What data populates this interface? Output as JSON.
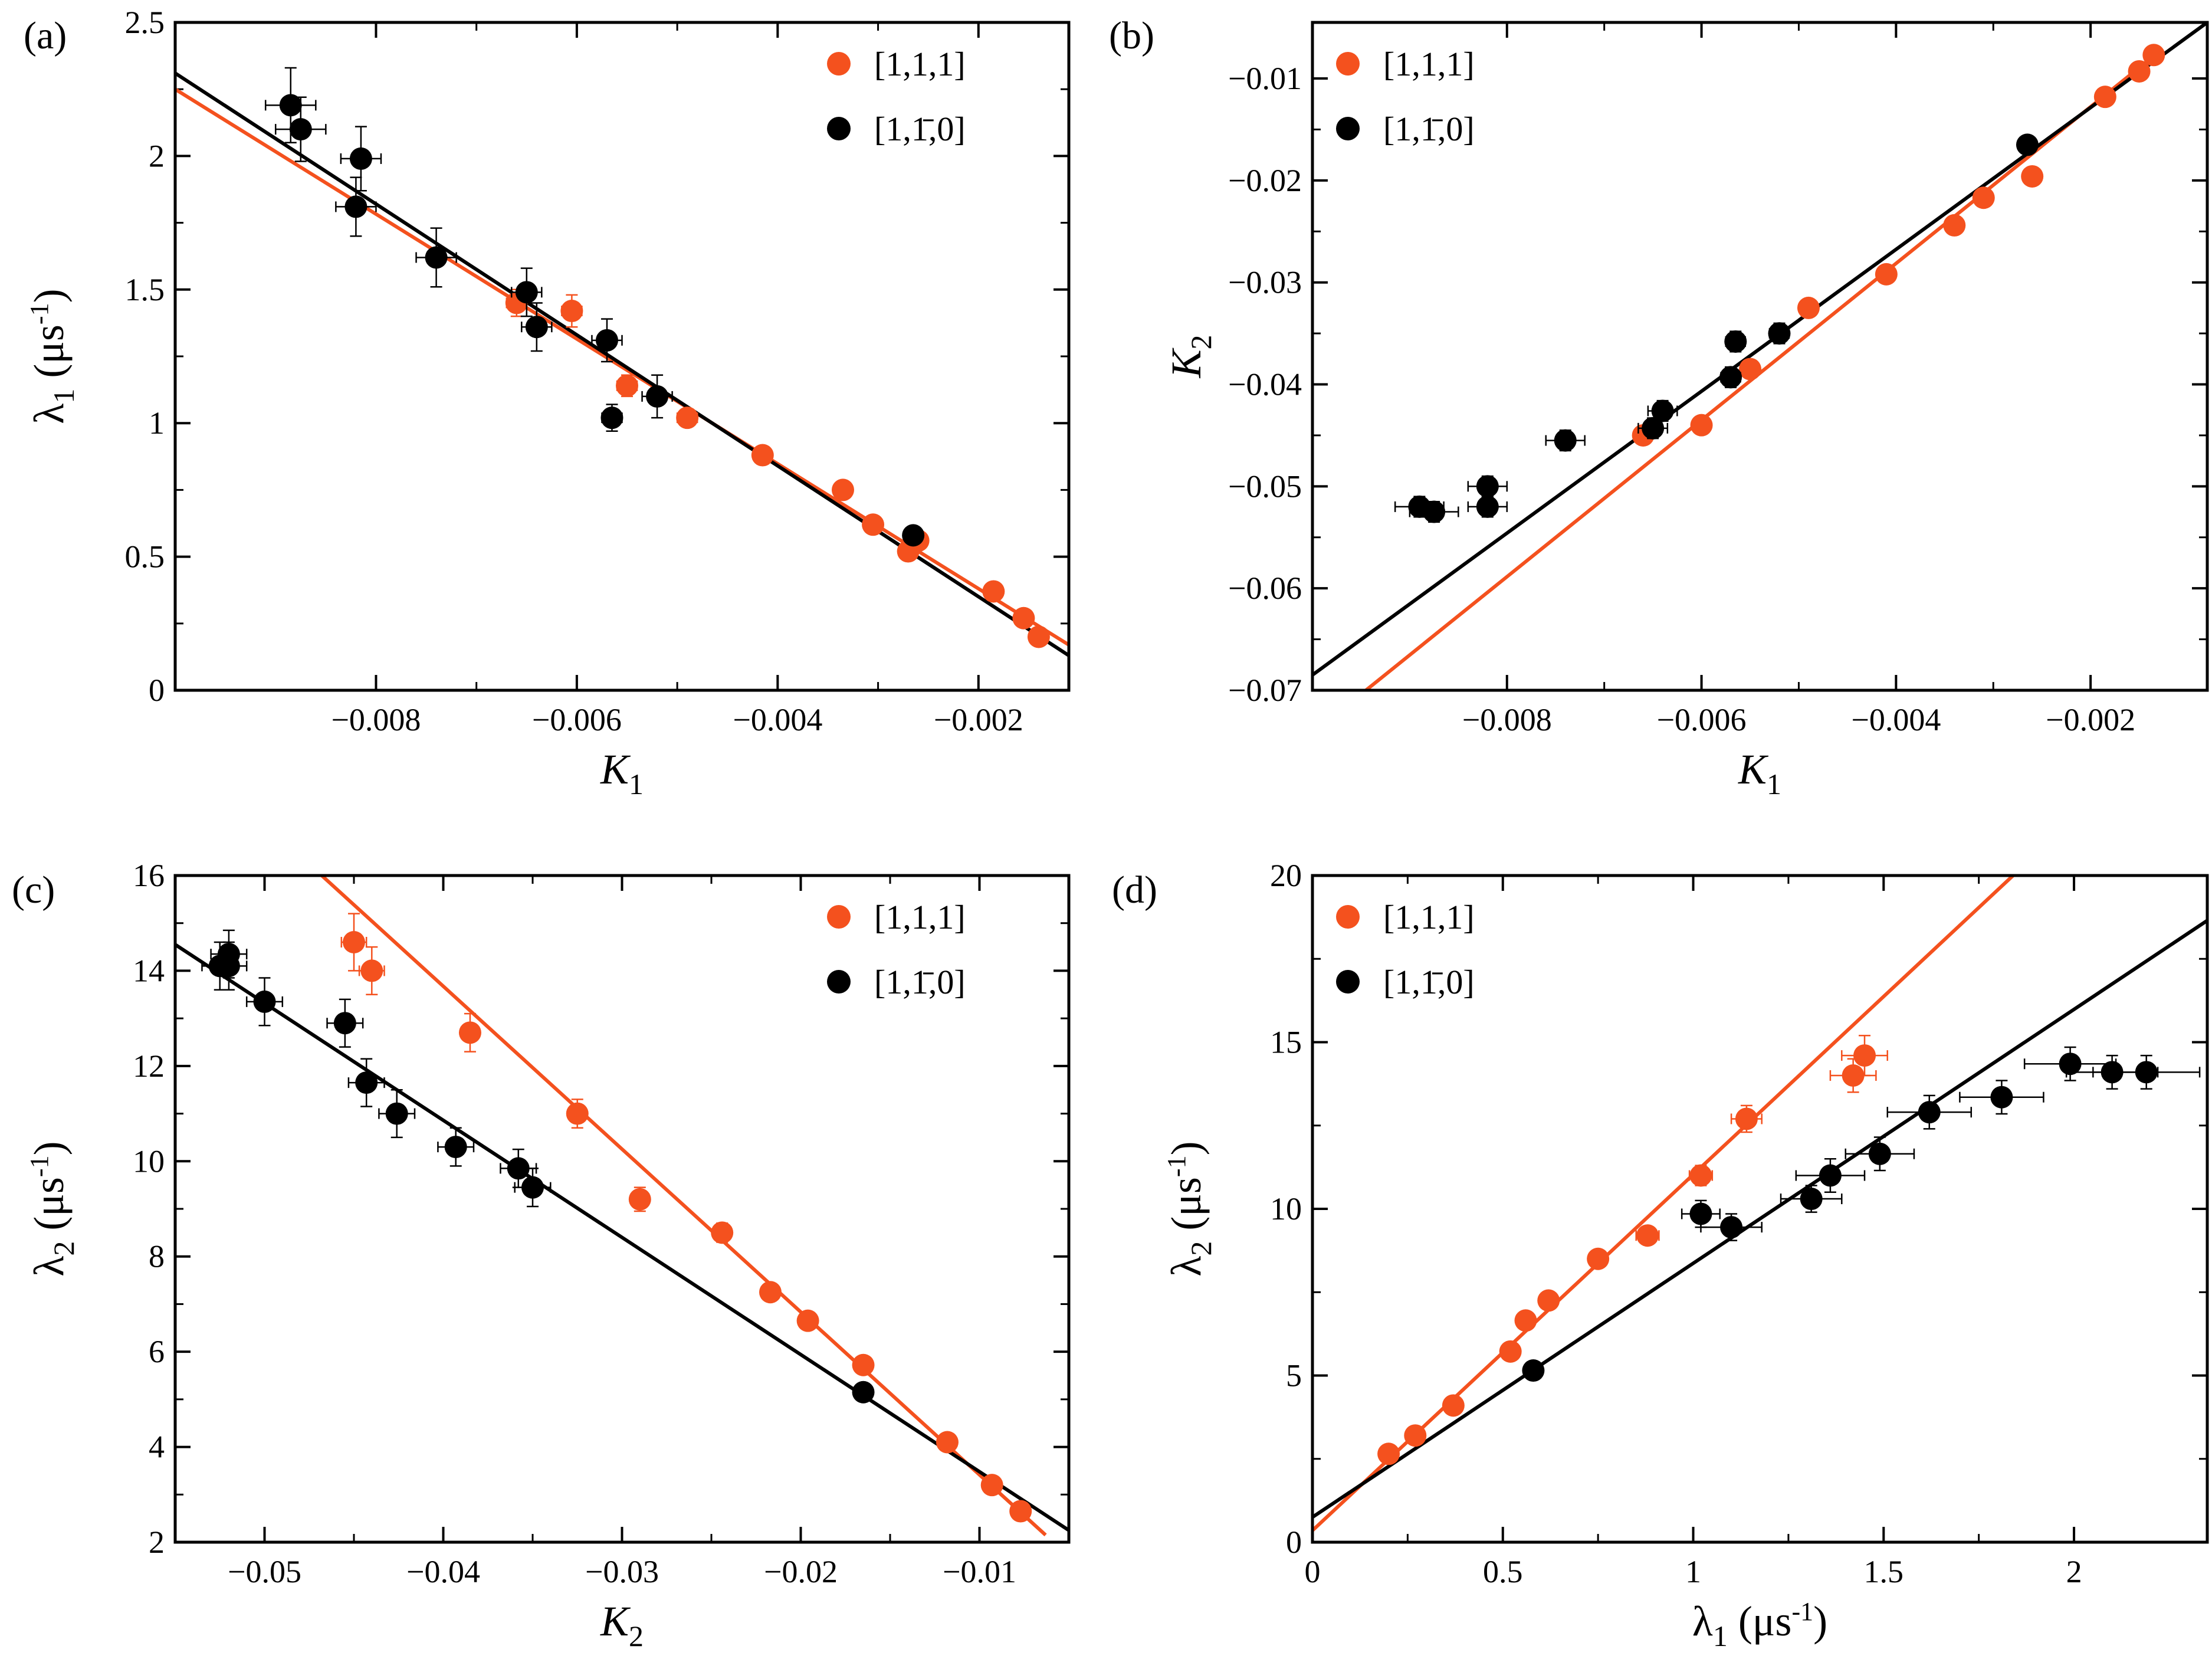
{
  "colors": {
    "orange": "#F4511E",
    "black": "#000000"
  },
  "chart_data": [
    {
      "panel": "(a)",
      "type": "scatter",
      "xlabel": "K",
      "xlabel_sub": "1",
      "ylabel": "λ",
      "ylabel_sub": "1",
      "ylabel_unit": " (μs",
      "ylabel_exp": "-1",
      "ylabel_close": ")",
      "xlim": [
        -0.01,
        -0.0011
      ],
      "ylim": [
        0,
        2.5
      ],
      "xticks": [
        -0.008,
        -0.006,
        -0.004,
        -0.002
      ],
      "xtick_labels": [
        "−0.008",
        "−0.006",
        "−0.004",
        "−0.002"
      ],
      "yticks": [
        0,
        0.5,
        1,
        1.5,
        2,
        2.5
      ],
      "ytick_labels": [
        "0",
        "0.5",
        "1",
        "1.5",
        "2",
        "2.5"
      ],
      "legend_position": "top-right",
      "series": [
        {
          "name": "[1,1,1]",
          "color": "orange",
          "points": [
            {
              "x": -0.0066,
              "y": 1.45,
              "xerr": 0.0001,
              "yerr": 0.05
            },
            {
              "x": -0.00605,
              "y": 1.42,
              "xerr": 0.0001,
              "yerr": 0.06
            },
            {
              "x": -0.0055,
              "y": 1.14,
              "xerr": 0.0001,
              "yerr": 0.04
            },
            {
              "x": -0.0049,
              "y": 1.02,
              "xerr": 0.0001,
              "yerr": 0.03
            },
            {
              "x": -0.00415,
              "y": 0.88,
              "xerr": 5e-05,
              "yerr": 0.02
            },
            {
              "x": -0.00335,
              "y": 0.75,
              "xerr": 5e-05,
              "yerr": 0.02
            },
            {
              "x": -0.00305,
              "y": 0.62,
              "xerr": 5e-05,
              "yerr": 0.02
            },
            {
              "x": -0.0026,
              "y": 0.56,
              "xerr": 5e-05,
              "yerr": 0.02
            },
            {
              "x": -0.0027,
              "y": 0.52,
              "xerr": 5e-05,
              "yerr": 0.02
            },
            {
              "x": -0.00185,
              "y": 0.37,
              "xerr": 5e-05,
              "yerr": 0.02
            },
            {
              "x": -0.00155,
              "y": 0.27,
              "xerr": 5e-05,
              "yerr": 0.02
            },
            {
              "x": -0.0014,
              "y": 0.2,
              "xerr": 5e-05,
              "yerr": 0.02
            }
          ],
          "fit": {
            "x": [
              -0.01,
              -0.0011
            ],
            "y": [
              2.25,
              0.17
            ]
          }
        },
        {
          "name": "[1,1̄,0]",
          "color": "black",
          "points": [
            {
              "x": -0.00885,
              "y": 2.19,
              "xerr": 0.00025,
              "yerr": 0.14
            },
            {
              "x": -0.00875,
              "y": 2.1,
              "xerr": 0.00025,
              "yerr": 0.12
            },
            {
              "x": -0.00815,
              "y": 1.99,
              "xerr": 0.0002,
              "yerr": 0.12
            },
            {
              "x": -0.0082,
              "y": 1.81,
              "xerr": 0.0002,
              "yerr": 0.11
            },
            {
              "x": -0.0074,
              "y": 1.62,
              "xerr": 0.0002,
              "yerr": 0.11
            },
            {
              "x": -0.0065,
              "y": 1.49,
              "xerr": 0.00015,
              "yerr": 0.09
            },
            {
              "x": -0.0064,
              "y": 1.36,
              "xerr": 0.00015,
              "yerr": 0.09
            },
            {
              "x": -0.0057,
              "y": 1.31,
              "xerr": 0.00015,
              "yerr": 0.08
            },
            {
              "x": -0.00565,
              "y": 1.02,
              "xerr": 0.0001,
              "yerr": 0.05
            },
            {
              "x": -0.0052,
              "y": 1.1,
              "xerr": 0.00015,
              "yerr": 0.08
            },
            {
              "x": -0.00265,
              "y": 0.58,
              "xerr": 5e-05,
              "yerr": 0.02
            }
          ],
          "fit": {
            "x": [
              -0.01,
              -0.0011
            ],
            "y": [
              2.31,
              0.13
            ]
          }
        }
      ]
    },
    {
      "panel": "(b)",
      "type": "scatter",
      "xlabel": "K",
      "xlabel_sub": "1",
      "ylabel": "K",
      "ylabel_sub": "2",
      "xlim": [
        -0.01,
        -0.0008
      ],
      "ylim": [
        -0.07,
        -0.0045
      ],
      "xticks": [
        -0.008,
        -0.006,
        -0.004,
        -0.002
      ],
      "xtick_labels": [
        "−0.008",
        "−0.006",
        "−0.004",
        "−0.002"
      ],
      "yticks": [
        -0.07,
        -0.06,
        -0.05,
        -0.04,
        -0.03,
        -0.02,
        -0.01
      ],
      "ytick_labels": [
        "−0.07",
        "−0.06",
        "−0.05",
        "−0.04",
        "−0.03",
        "−0.02",
        "−0.01"
      ],
      "legend_position": "top-left",
      "series": [
        {
          "name": "[1,1,1]",
          "color": "orange",
          "points": [
            {
              "x": -0.0066,
              "y": -0.045
            },
            {
              "x": -0.006,
              "y": -0.044
            },
            {
              "x": -0.0055,
              "y": -0.0385
            },
            {
              "x": -0.0049,
              "y": -0.0325
            },
            {
              "x": -0.0041,
              "y": -0.0292
            },
            {
              "x": -0.0034,
              "y": -0.0244
            },
            {
              "x": -0.0031,
              "y": -0.0217
            },
            {
              "x": -0.0026,
              "y": -0.0196
            },
            {
              "x": -0.00185,
              "y": -0.0118
            },
            {
              "x": -0.0015,
              "y": -0.0093
            },
            {
              "x": -0.00135,
              "y": -0.0077
            }
          ],
          "fit": {
            "x": [
              -0.00945,
              -0.0013
            ],
            "y": [
              -0.07,
              -0.0074
            ]
          }
        },
        {
          "name": "[1,1̄,0]",
          "color": "black",
          "points": [
            {
              "x": -0.0089,
              "y": -0.052,
              "xerr": 0.00025,
              "yerr": 0.001
            },
            {
              "x": -0.00875,
              "y": -0.0525,
              "xerr": 0.00025,
              "yerr": 0.001
            },
            {
              "x": -0.0082,
              "y": -0.05,
              "xerr": 0.0002,
              "yerr": 0.001
            },
            {
              "x": -0.0082,
              "y": -0.052,
              "xerr": 0.0002,
              "yerr": 0.001
            },
            {
              "x": -0.0074,
              "y": -0.0455,
              "xerr": 0.0002,
              "yerr": 0.001
            },
            {
              "x": -0.0065,
              "y": -0.0443,
              "xerr": 0.00015,
              "yerr": 0.001
            },
            {
              "x": -0.0064,
              "y": -0.0426,
              "xerr": 0.00015,
              "yerr": 0.001
            },
            {
              "x": -0.0057,
              "y": -0.0393,
              "xerr": 0.0001,
              "yerr": 0.001
            },
            {
              "x": -0.00565,
              "y": -0.0358,
              "xerr": 0.0001,
              "yerr": 0.001
            },
            {
              "x": -0.0052,
              "y": -0.035,
              "xerr": 0.0001,
              "yerr": 0.001
            },
            {
              "x": -0.00265,
              "y": -0.0165,
              "xerr": 5e-05,
              "yerr": 0.0005
            }
          ],
          "fit": {
            "x": [
              -0.01,
              -0.0008
            ],
            "y": [
              -0.0685,
              -0.0045
            ]
          }
        }
      ]
    },
    {
      "panel": "(c)",
      "type": "scatter",
      "xlabel": "K",
      "xlabel_sub": "2",
      "ylabel": "λ",
      "ylabel_sub": "2",
      "ylabel_unit": " (μs",
      "ylabel_exp": "-1",
      "ylabel_close": ")",
      "xlim": [
        -0.055,
        -0.005
      ],
      "ylim": [
        2,
        16
      ],
      "xticks": [
        -0.05,
        -0.04,
        -0.03,
        -0.02,
        -0.01
      ],
      "xtick_labels": [
        "−0.05",
        "−0.04",
        "−0.03",
        "−0.02",
        "−0.01"
      ],
      "yticks": [
        2,
        4,
        6,
        8,
        10,
        12,
        14,
        16
      ],
      "ytick_labels": [
        "2",
        "4",
        "6",
        "8",
        "10",
        "12",
        "14",
        "16"
      ],
      "legend_position": "top-right",
      "series": [
        {
          "name": "[1,1,1]",
          "color": "orange",
          "points": [
            {
              "x": -0.045,
              "y": 14.6,
              "xerr": 0.0007,
              "yerr": 0.6
            },
            {
              "x": -0.044,
              "y": 14.0,
              "xerr": 0.0007,
              "yerr": 0.5
            },
            {
              "x": -0.0385,
              "y": 12.7,
              "xerr": 0.0005,
              "yerr": 0.4
            },
            {
              "x": -0.0325,
              "y": 11.0,
              "xerr": 0.0004,
              "yerr": 0.3
            },
            {
              "x": -0.029,
              "y": 9.2,
              "xerr": 0.0004,
              "yerr": 0.25
            },
            {
              "x": -0.0244,
              "y": 8.5,
              "xerr": 0.0003,
              "yerr": 0.2
            },
            {
              "x": -0.0217,
              "y": 7.25,
              "xerr": 0.0003,
              "yerr": 0.15
            },
            {
              "x": -0.0196,
              "y": 6.65,
              "xerr": 0.0003,
              "yerr": 0.15
            },
            {
              "x": -0.0165,
              "y": 5.72,
              "xerr": 0.0003,
              "yerr": 0.15
            },
            {
              "x": -0.0118,
              "y": 4.1,
              "xerr": 0.0002,
              "yerr": 0.1
            },
            {
              "x": -0.0093,
              "y": 3.2,
              "xerr": 0.0002,
              "yerr": 0.1
            },
            {
              "x": -0.0077,
              "y": 2.65,
              "xerr": 0.0002,
              "yerr": 0.1
            }
          ],
          "fit": {
            "x": [
              -0.0468,
              -0.0063
            ],
            "y": [
              16,
              2.15
            ]
          }
        },
        {
          "name": "[1,1̄,0]",
          "color": "black",
          "points": [
            {
              "x": -0.0525,
              "y": 14.1,
              "xerr": 0.001,
              "yerr": 0.5
            },
            {
              "x": -0.052,
              "y": 14.35,
              "xerr": 0.001,
              "yerr": 0.5
            },
            {
              "x": -0.052,
              "y": 14.1,
              "xerr": 0.001,
              "yerr": 0.5
            },
            {
              "x": -0.05,
              "y": 13.35,
              "xerr": 0.001,
              "yerr": 0.5
            },
            {
              "x": -0.0455,
              "y": 12.9,
              "xerr": 0.001,
              "yerr": 0.5
            },
            {
              "x": -0.0443,
              "y": 11.65,
              "xerr": 0.001,
              "yerr": 0.5
            },
            {
              "x": -0.0426,
              "y": 11.0,
              "xerr": 0.001,
              "yerr": 0.5
            },
            {
              "x": -0.0393,
              "y": 10.3,
              "xerr": 0.001,
              "yerr": 0.4
            },
            {
              "x": -0.0358,
              "y": 9.85,
              "xerr": 0.001,
              "yerr": 0.4
            },
            {
              "x": -0.035,
              "y": 9.45,
              "xerr": 0.001,
              "yerr": 0.4
            },
            {
              "x": -0.0165,
              "y": 5.15,
              "xerr": 0.0003,
              "yerr": 0.15
            }
          ],
          "fit": {
            "x": [
              -0.055,
              -0.005
            ],
            "y": [
              14.55,
              2.25
            ]
          }
        }
      ]
    },
    {
      "panel": "(d)",
      "type": "scatter",
      "xlabel": "λ",
      "xlabel_sub": "1",
      "xlabel_unit": " (μs",
      "xlabel_exp": "-1",
      "xlabel_close": ")",
      "ylabel": "λ",
      "ylabel_sub": "2",
      "ylabel_unit": " (μs",
      "ylabel_exp": "-1",
      "ylabel_close": ")",
      "xlim": [
        0,
        2.35
      ],
      "ylim": [
        0,
        20
      ],
      "xticks": [
        0,
        0.5,
        1,
        1.5,
        2
      ],
      "xtick_labels": [
        "0",
        "0.5",
        "1",
        "1.5",
        "2"
      ],
      "yticks": [
        0,
        5,
        10,
        15,
        20
      ],
      "ytick_labels": [
        "0",
        "5",
        "10",
        "15",
        "20"
      ],
      "legend_position": "top-left",
      "series": [
        {
          "name": "[1,1,1]",
          "color": "orange",
          "points": [
            {
              "x": 1.45,
              "y": 14.6,
              "xerr": 0.06,
              "yerr": 0.6
            },
            {
              "x": 1.42,
              "y": 14.0,
              "xerr": 0.06,
              "yerr": 0.5
            },
            {
              "x": 1.14,
              "y": 12.7,
              "xerr": 0.04,
              "yerr": 0.4
            },
            {
              "x": 1.02,
              "y": 11.0,
              "xerr": 0.03,
              "yerr": 0.3
            },
            {
              "x": 0.88,
              "y": 9.2,
              "xerr": 0.03,
              "yerr": 0.25
            },
            {
              "x": 0.75,
              "y": 8.5,
              "xerr": 0.02,
              "yerr": 0.2
            },
            {
              "x": 0.62,
              "y": 7.25,
              "xerr": 0.02,
              "yerr": 0.15
            },
            {
              "x": 0.56,
              "y": 6.65,
              "xerr": 0.02,
              "yerr": 0.15
            },
            {
              "x": 0.52,
              "y": 5.72,
              "xerr": 0.02,
              "yerr": 0.15
            },
            {
              "x": 0.37,
              "y": 4.1,
              "xerr": 0.02,
              "yerr": 0.1
            },
            {
              "x": 0.27,
              "y": 3.2,
              "xerr": 0.02,
              "yerr": 0.1
            },
            {
              "x": 0.2,
              "y": 2.65,
              "xerr": 0.02,
              "yerr": 0.1
            }
          ],
          "fit": {
            "x": [
              0,
              1.84
            ],
            "y": [
              0.35,
              20
            ]
          }
        },
        {
          "name": "[1,1̄,0]",
          "color": "black",
          "points": [
            {
              "x": 2.19,
              "y": 14.1,
              "xerr": 0.14,
              "yerr": 0.5
            },
            {
              "x": 2.1,
              "y": 14.1,
              "xerr": 0.12,
              "yerr": 0.5
            },
            {
              "x": 1.99,
              "y": 14.35,
              "xerr": 0.12,
              "yerr": 0.5
            },
            {
              "x": 1.81,
              "y": 13.35,
              "xerr": 0.11,
              "yerr": 0.5
            },
            {
              "x": 1.62,
              "y": 12.9,
              "xerr": 0.11,
              "yerr": 0.5
            },
            {
              "x": 1.49,
              "y": 11.65,
              "xerr": 0.09,
              "yerr": 0.5
            },
            {
              "x": 1.36,
              "y": 11.0,
              "xerr": 0.09,
              "yerr": 0.5
            },
            {
              "x": 1.31,
              "y": 10.3,
              "xerr": 0.08,
              "yerr": 0.4
            },
            {
              "x": 1.1,
              "y": 9.45,
              "xerr": 0.08,
              "yerr": 0.4
            },
            {
              "x": 1.02,
              "y": 9.85,
              "xerr": 0.05,
              "yerr": 0.4
            },
            {
              "x": 0.58,
              "y": 5.15,
              "xerr": 0.02,
              "yerr": 0.15
            }
          ],
          "fit": {
            "x": [
              0,
              2.35
            ],
            "y": [
              0.75,
              18.65
            ]
          }
        }
      ]
    }
  ]
}
